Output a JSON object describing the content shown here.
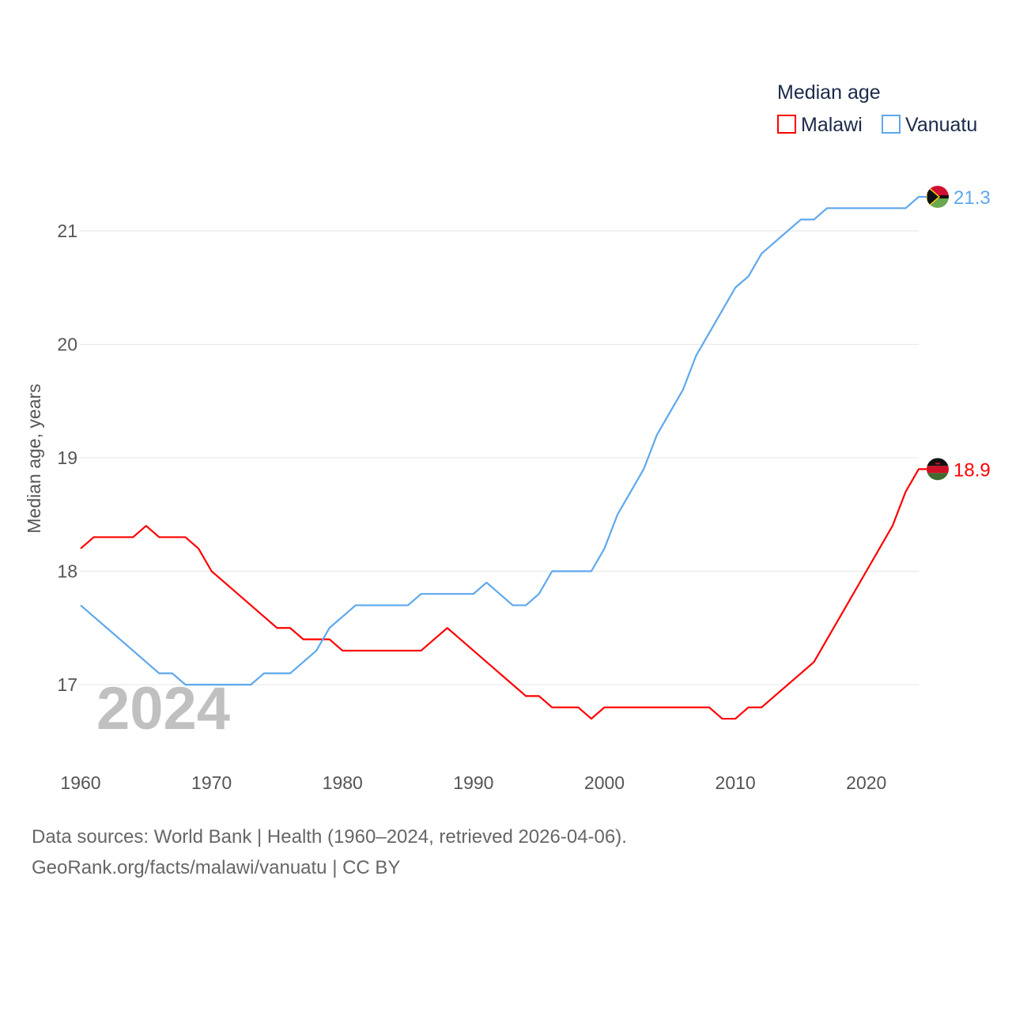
{
  "chart_data": {
    "type": "line",
    "title": "",
    "xlabel": "",
    "ylabel": "Median age, years",
    "xlim": [
      1960,
      2024
    ],
    "ylim": [
      16.5,
      21.5
    ],
    "x_ticks": [
      1960,
      1970,
      1980,
      1990,
      2000,
      2010,
      2020
    ],
    "y_ticks": [
      17,
      18,
      19,
      20,
      21
    ],
    "grid": true,
    "legend": {
      "title": "Median age",
      "placement": "top-right"
    },
    "year_watermark": "2024",
    "x": [
      1960,
      1961,
      1962,
      1963,
      1964,
      1965,
      1966,
      1967,
      1968,
      1969,
      1970,
      1971,
      1972,
      1973,
      1974,
      1975,
      1976,
      1977,
      1978,
      1979,
      1980,
      1981,
      1982,
      1983,
      1984,
      1985,
      1986,
      1987,
      1988,
      1989,
      1990,
      1991,
      1992,
      1993,
      1994,
      1995,
      1996,
      1997,
      1998,
      1999,
      2000,
      2001,
      2002,
      2003,
      2004,
      2005,
      2006,
      2007,
      2008,
      2009,
      2010,
      2011,
      2012,
      2013,
      2014,
      2015,
      2016,
      2017,
      2018,
      2019,
      2020,
      2021,
      2022,
      2023,
      2024
    ],
    "series": [
      {
        "name": "Malawi",
        "color": "#ff0000",
        "end_label": "18.9",
        "values": [
          18.2,
          18.3,
          18.3,
          18.3,
          18.3,
          18.4,
          18.3,
          18.3,
          18.3,
          18.2,
          18.0,
          17.9,
          17.8,
          17.7,
          17.6,
          17.5,
          17.5,
          17.4,
          17.4,
          17.4,
          17.3,
          17.3,
          17.3,
          17.3,
          17.3,
          17.3,
          17.3,
          17.4,
          17.5,
          17.4,
          17.3,
          17.2,
          17.1,
          17.0,
          16.9,
          16.9,
          16.8,
          16.8,
          16.8,
          16.7,
          16.8,
          16.8,
          16.8,
          16.8,
          16.8,
          16.8,
          16.8,
          16.8,
          16.8,
          16.7,
          16.7,
          16.8,
          16.8,
          16.9,
          17.0,
          17.1,
          17.2,
          17.4,
          17.6,
          17.8,
          18.0,
          18.2,
          18.4,
          18.7,
          18.9
        ]
      },
      {
        "name": "Vanuatu",
        "color": "#5ea8ec",
        "end_label": "21.3",
        "values": [
          17.7,
          17.6,
          17.5,
          17.4,
          17.3,
          17.2,
          17.1,
          17.1,
          17.0,
          17.0,
          17.0,
          17.0,
          17.0,
          17.0,
          17.1,
          17.1,
          17.1,
          17.2,
          17.3,
          17.5,
          17.6,
          17.7,
          17.7,
          17.7,
          17.7,
          17.7,
          17.8,
          17.8,
          17.8,
          17.8,
          17.8,
          17.9,
          17.8,
          17.7,
          17.7,
          17.8,
          18.0,
          18.0,
          18.0,
          18.0,
          18.2,
          18.5,
          18.7,
          18.9,
          19.2,
          19.4,
          19.6,
          19.9,
          20.1,
          20.3,
          20.5,
          20.6,
          20.8,
          20.9,
          21.0,
          21.1,
          21.1,
          21.2,
          21.2,
          21.2,
          21.2,
          21.2,
          21.2,
          21.2,
          21.3
        ]
      }
    ]
  },
  "footer": {
    "line1": "Data sources: World Bank | Health (1960–2024, retrieved 2026-04-06).",
    "line2": "GeoRank.org/facts/malawi/vanuatu | CC BY"
  }
}
